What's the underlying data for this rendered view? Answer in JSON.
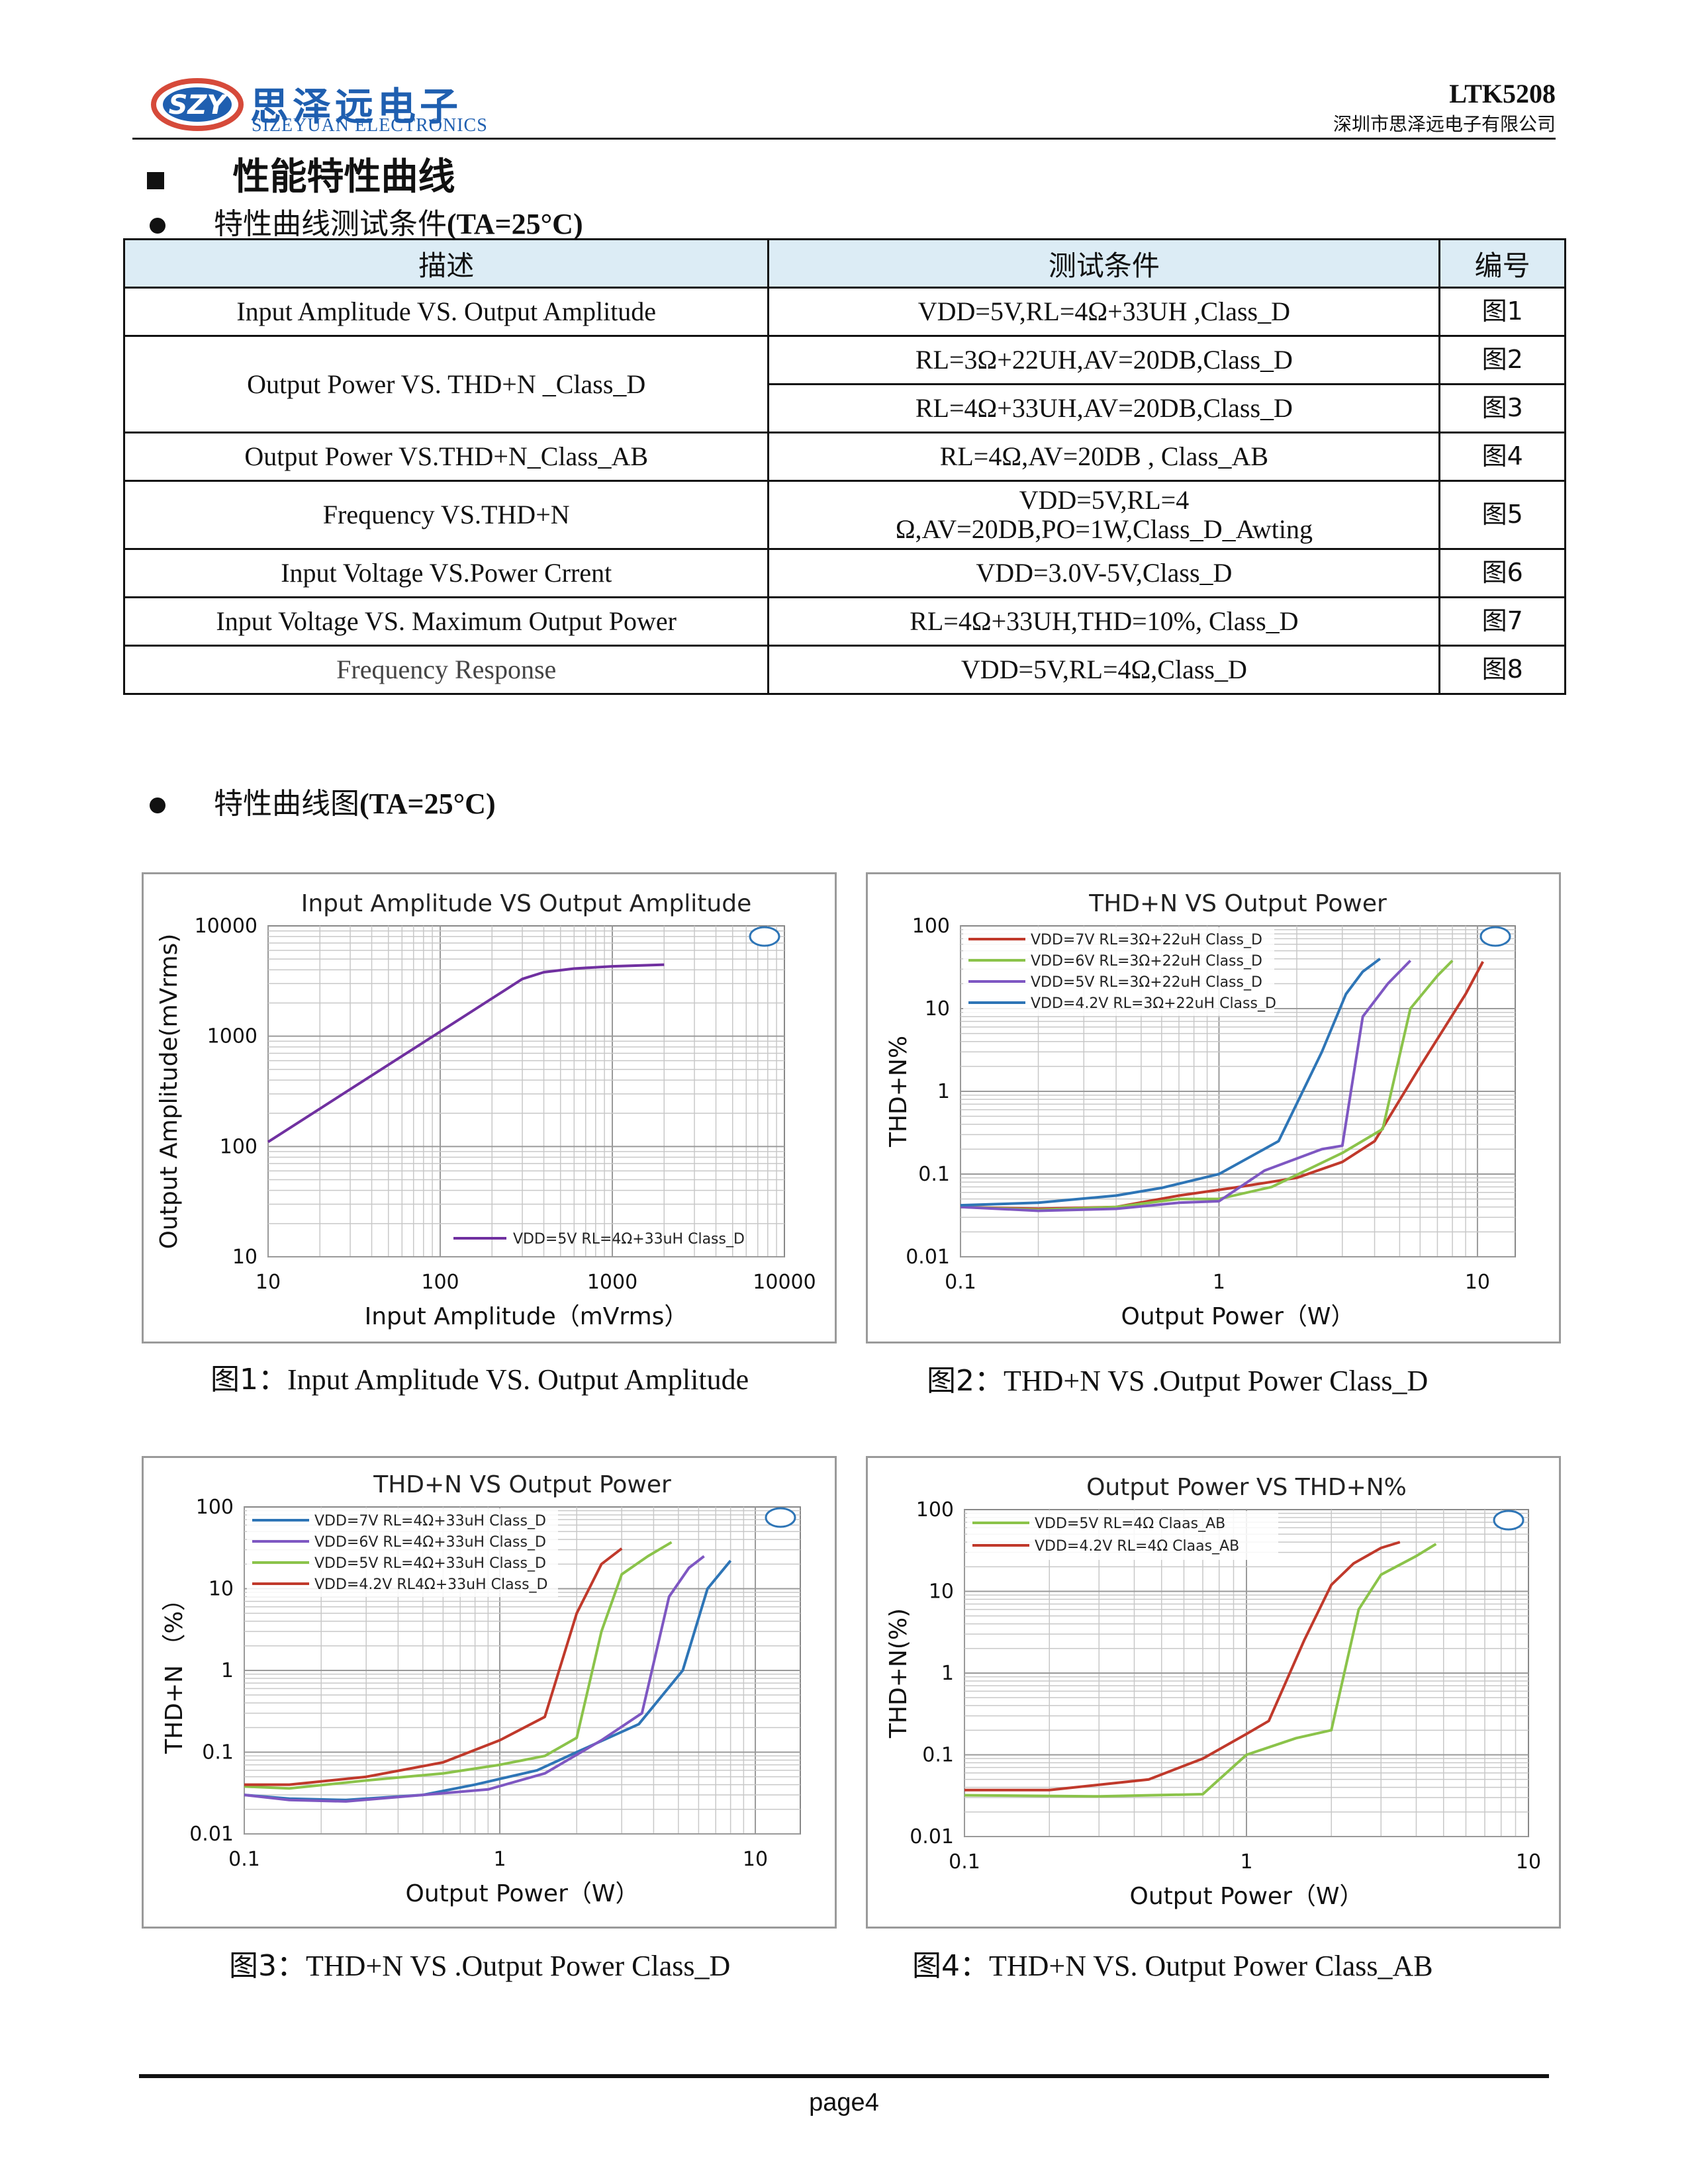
{
  "header": {
    "logo_mark": "SZY",
    "logo_cn": "思泽远电子",
    "logo_en": "SIZEYUAN ELECTRONICS",
    "part_number": "LTK5208",
    "company": "深圳市思泽远电子有限公司"
  },
  "section": {
    "title": "性能特性曲线"
  },
  "test_conditions": {
    "title_cn": "特性曲线测试条件",
    "title_suffix": "(TA=25°C)",
    "columns": [
      "描述",
      "测试条件",
      "编号"
    ],
    "rows": [
      {
        "desc": "Input Amplitude VS. Output Amplitude",
        "cond": "VDD=5V,RL=4Ω+33UH ,Class_D",
        "fig": "图1"
      },
      {
        "desc": "Output Power VS. THD+N _Class_D",
        "cond": "RL=3Ω+22UH,AV=20DB,Class_D",
        "fig": "图2"
      },
      {
        "desc": "",
        "cond": "RL=4Ω+33UH,AV=20DB,Class_D",
        "fig": "图3"
      },
      {
        "desc": "Output Power VS.THD+N_Class_AB",
        "cond": "RL=4Ω,AV=20DB , Class_AB",
        "fig": "图4"
      },
      {
        "desc": "Frequency VS.THD+N",
        "cond_line1": "VDD=5V,RL=4",
        "cond_line2": "Ω,AV=20DB,PO=1W,Class_D_Awting",
        "fig": "图5"
      },
      {
        "desc": "Input Voltage VS.Power Crrent",
        "cond": "VDD=3.0V-5V,Class_D",
        "fig": "图6"
      },
      {
        "desc": "Input Voltage VS. Maximum Output Power",
        "cond": "RL=4Ω+33UH,THD=10%, Class_D",
        "fig": "图7"
      },
      {
        "desc": "Frequency Response",
        "cond": "VDD=5V,RL=4Ω,Class_D",
        "fig": "图8"
      }
    ]
  },
  "curves_section": {
    "title_cn": "特性曲线图",
    "title_suffix": "(TA=25°C)"
  },
  "chart_data": [
    {
      "type": "line",
      "title": "Input Amplitude VS Output Amplitude",
      "xlabel": "Input  Amplitude（mVrms）",
      "ylabel": "Output Amplitude(mVrms)",
      "xscale": "log",
      "yscale": "log",
      "xlim": [
        10,
        10000
      ],
      "ylim": [
        10,
        10000
      ],
      "xticks": [
        "10",
        "100",
        "1000",
        "10000"
      ],
      "yticks": [
        "10",
        "100",
        "1000",
        "10000"
      ],
      "grid": true,
      "legend": "bottom-right",
      "series": [
        {
          "name": "VDD=5V RL=4Ω+33uH Class_D",
          "color": "#7030a0",
          "x": [
            10,
            50,
            100,
            200,
            300,
            400,
            600,
            1000,
            2000
          ],
          "y": [
            110,
            550,
            1100,
            2200,
            3300,
            3800,
            4100,
            4300,
            4450
          ]
        }
      ],
      "caption_prefix": "图1：",
      "caption": "Input Amplitude VS. Output Amplitude"
    },
    {
      "type": "line",
      "title": "THD+N VS Output Power",
      "xlabel": "Output Power（W）",
      "ylabel": "THD+N%",
      "xscale": "log",
      "yscale": "log",
      "xlim": [
        0.1,
        14
      ],
      "ylim": [
        0.01,
        100
      ],
      "xticks": [
        "0.1",
        "1",
        "10"
      ],
      "yticks": [
        "0.01",
        "0.1",
        "1",
        "10",
        "100"
      ],
      "grid": true,
      "legend": "top-left",
      "series": [
        {
          "name": "VDD=7V  RL=3Ω+22uH Class_D",
          "color": "#c0392b",
          "x": [
            0.1,
            0.2,
            0.4,
            0.7,
            1.2,
            2.0,
            3.0,
            4.0,
            6.0,
            9.0,
            10.5
          ],
          "y": [
            0.04,
            0.038,
            0.04,
            0.055,
            0.07,
            0.09,
            0.14,
            0.25,
            2.0,
            15,
            37
          ]
        },
        {
          "name": "VDD=6V  RL=3Ω+22uH Class_D",
          "color": "#8bc34a",
          "x": [
            0.1,
            0.2,
            0.4,
            0.7,
            1.0,
            1.6,
            3.0,
            4.3,
            5.5,
            7.0,
            8.0
          ],
          "y": [
            0.04,
            0.037,
            0.04,
            0.05,
            0.05,
            0.07,
            0.18,
            0.35,
            10,
            25,
            38
          ]
        },
        {
          "name": "VDD=5V  RL=3Ω+22uH Class_D",
          "color": "#7e57c2",
          "x": [
            0.1,
            0.2,
            0.4,
            0.7,
            1.0,
            1.5,
            2.5,
            3.0,
            3.6,
            4.5,
            5.5
          ],
          "y": [
            0.04,
            0.036,
            0.038,
            0.045,
            0.047,
            0.11,
            0.2,
            0.22,
            8,
            20,
            38
          ]
        },
        {
          "name": "VDD=4.2V  RL=3Ω+22uH Class_D",
          "color": "#2e75b6",
          "x": [
            0.1,
            0.2,
            0.4,
            0.6,
            1.0,
            1.7,
            2.5,
            3.1,
            3.6,
            4.2
          ],
          "y": [
            0.042,
            0.045,
            0.055,
            0.068,
            0.1,
            0.25,
            3.0,
            15,
            28,
            40
          ]
        }
      ],
      "caption_prefix": "图2：",
      "caption": "THD+N VS .Output Power Class_D"
    },
    {
      "type": "line",
      "title": "THD+N VS Output Power",
      "xlabel": "Output Power（W）",
      "ylabel": "THD+N （%）",
      "xscale": "log",
      "yscale": "log",
      "xlim": [
        0.1,
        15
      ],
      "ylim": [
        0.01,
        100
      ],
      "xticks": [
        "0.1",
        "1",
        "10"
      ],
      "yticks": [
        "0.01",
        "0.1",
        "1",
        "10",
        "100"
      ],
      "grid": true,
      "legend": "top-left",
      "series": [
        {
          "name": "VDD=7V  RL=4Ω+33uH Class_D",
          "color": "#2e75b6",
          "x": [
            0.1,
            0.15,
            0.25,
            0.5,
            0.8,
            1.4,
            2.0,
            3.5,
            5.2,
            6.5,
            8.0
          ],
          "y": [
            0.03,
            0.027,
            0.026,
            0.03,
            0.04,
            0.06,
            0.1,
            0.22,
            1.0,
            10,
            22
          ]
        },
        {
          "name": "VDD=6V  RL=4Ω+33uH Class_D",
          "color": "#7e57c2",
          "x": [
            0.1,
            0.15,
            0.25,
            0.5,
            0.9,
            1.5,
            2.5,
            3.6,
            4.6,
            5.5,
            6.3
          ],
          "y": [
            0.03,
            0.026,
            0.025,
            0.03,
            0.035,
            0.055,
            0.14,
            0.3,
            8.0,
            18,
            25
          ]
        },
        {
          "name": "VDD=5V  RL=4Ω+33uH Class_D",
          "color": "#8bc34a",
          "x": [
            0.1,
            0.15,
            0.3,
            0.6,
            1.0,
            1.5,
            2.0,
            2.5,
            3.0,
            3.8,
            4.7
          ],
          "y": [
            0.038,
            0.036,
            0.045,
            0.055,
            0.07,
            0.09,
            0.15,
            3.0,
            15,
            25,
            37
          ]
        },
        {
          "name": "VDD=4.2V  RL4Ω+33uH Class_D",
          "color": "#c0392b",
          "x": [
            0.1,
            0.15,
            0.3,
            0.6,
            1.0,
            1.5,
            2.0,
            2.5,
            3.0
          ],
          "y": [
            0.04,
            0.04,
            0.05,
            0.075,
            0.14,
            0.27,
            5.0,
            20,
            31
          ]
        }
      ],
      "caption_prefix": "图3：",
      "caption": "THD+N VS .Output Power Class_D"
    },
    {
      "type": "line",
      "title": "Output Power VS THD+N%",
      "xlabel": "Output Power（W）",
      "ylabel": "THD+N(%)",
      "xscale": "log",
      "yscale": "log",
      "xlim": [
        0.1,
        10
      ],
      "ylim": [
        0.01,
        100
      ],
      "xticks": [
        "0.1",
        "1",
        "10"
      ],
      "yticks": [
        "0.01",
        "0.1",
        "1",
        "10",
        "100"
      ],
      "grid": true,
      "legend": "top-left",
      "series": [
        {
          "name": "VDD=5V  RL=4Ω Claas_AB",
          "color": "#8bc34a",
          "x": [
            0.1,
            0.3,
            0.7,
            1.0,
            1.5,
            2.0,
            2.5,
            3.0,
            4.0,
            4.7
          ],
          "y": [
            0.032,
            0.031,
            0.033,
            0.1,
            0.16,
            0.2,
            6.0,
            16,
            27,
            38
          ]
        },
        {
          "name": "VDD=4.2V  RL=4Ω Claas_AB",
          "color": "#c0392b",
          "x": [
            0.1,
            0.2,
            0.45,
            0.7,
            1.0,
            1.2,
            1.6,
            2.0,
            2.4,
            3.0,
            3.5
          ],
          "y": [
            0.037,
            0.037,
            0.05,
            0.09,
            0.18,
            0.26,
            2.5,
            12,
            22,
            34,
            40
          ]
        }
      ],
      "caption_prefix": "图4：",
      "caption": "THD+N VS. Output Power Class_AB"
    }
  ],
  "footer": {
    "page": "page4"
  }
}
